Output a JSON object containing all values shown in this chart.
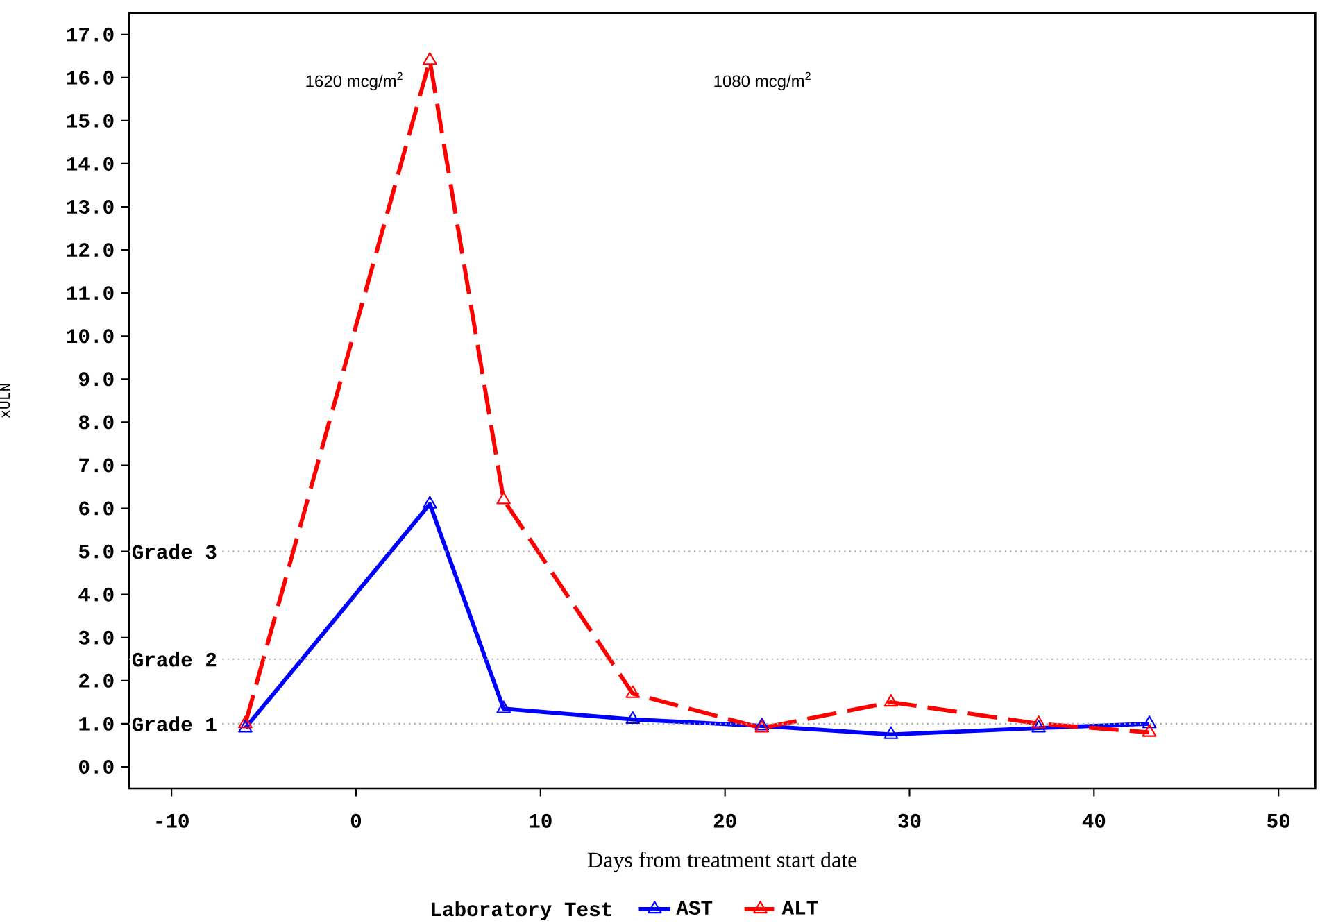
{
  "chart_data": {
    "type": "line",
    "xlabel": "Days from treatment start date",
    "ylabel": "xULN",
    "legend_title": "Laboratory Test",
    "annotations": [
      "1620 mcg/m$^{2}$",
      "1080 mcg/m$^{2}$"
    ],
    "x": [
      -6,
      4,
      8,
      15,
      22,
      29,
      37,
      43
    ],
    "series": [
      {
        "name": "AST",
        "color": "#0000ff",
        "line_style": "solid",
        "values": [
          0.9,
          6.1,
          1.35,
          1.1,
          0.95,
          0.75,
          0.9,
          1.0
        ]
      },
      {
        "name": "ALT",
        "color": "#ff0000",
        "line_style": "dashed",
        "values": [
          1.0,
          16.4,
          6.2,
          1.7,
          0.9,
          1.5,
          1.0,
          0.8
        ]
      }
    ],
    "marker": "triangle",
    "xlim": [
      -12.3,
      52
    ],
    "ylim": [
      -0.5,
      17.5
    ],
    "xticks": [
      -10,
      0,
      10,
      20,
      30,
      40,
      50
    ],
    "yticks": [
      {
        "value": 0,
        "label": "0.0"
      },
      {
        "value": 1,
        "label": "1.0"
      },
      {
        "value": 2,
        "label": "2.0"
      },
      {
        "value": 3,
        "label": "3.0"
      },
      {
        "value": 4,
        "label": "4.0"
      },
      {
        "value": 5,
        "label": "5.0"
      },
      {
        "value": 6,
        "label": "6.0"
      },
      {
        "value": 7,
        "label": "7.0"
      },
      {
        "value": 8,
        "label": "8.0"
      },
      {
        "value": 9,
        "label": "9.0"
      },
      {
        "value": 10,
        "label": "10.0"
      },
      {
        "value": 11,
        "label": "11.0"
      },
      {
        "value": 12,
        "label": "12.0"
      },
      {
        "value": 13,
        "label": "13.0"
      },
      {
        "value": 14,
        "label": "14.0"
      },
      {
        "value": 15,
        "label": "15.0"
      },
      {
        "value": 16,
        "label": "16.0"
      },
      {
        "value": 17,
        "label": "17.0"
      }
    ],
    "ref_lines": [
      {
        "axis": "y",
        "value": 1,
        "label": "Grade 1",
        "color": "#aaaaaa",
        "line_style": "dotted"
      },
      {
        "axis": "y",
        "value": 2.5,
        "label": "Grade 2",
        "color": "#aaaaaa",
        "line_style": "dotted"
      },
      {
        "axis": "y",
        "value": 5,
        "label": "Grade 3",
        "color": "#aaaaaa",
        "line_style": "dotted"
      }
    ],
    "grid": false,
    "legend": "bottom"
  }
}
